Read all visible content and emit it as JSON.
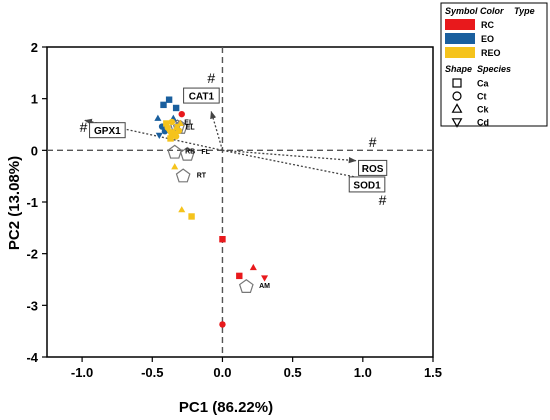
{
  "chart_data": {
    "type": "scatter",
    "xlabel": "PC1 (86.22%)",
    "ylabel": "PC2 (13.08%)",
    "xlim": [
      -1.25,
      1.5
    ],
    "ylim": [
      -4,
      2
    ],
    "x_ticks": [
      "-1.0",
      "-0.5",
      "0.0",
      "0.5",
      "1.0",
      "1.5"
    ],
    "y_ticks": [
      "-4",
      "-3",
      "-2",
      "-1",
      "0",
      "1",
      "2"
    ],
    "x_tick_values": [
      -1.0,
      -0.5,
      0.0,
      0.5,
      1.0,
      1.5
    ],
    "y_tick_values": [
      -4,
      -3,
      -2,
      -1,
      0,
      1,
      2
    ],
    "reference_lines": {
      "x": 0,
      "y": 0
    },
    "colors": {
      "RC": "#e8191c",
      "EO": "#1a5f9e",
      "REO": "#f5c31c"
    },
    "points": [
      {
        "group": "EO",
        "shape": "square",
        "x": -0.42,
        "y": 0.88
      },
      {
        "group": "EO",
        "shape": "square",
        "x": -0.38,
        "y": 0.98
      },
      {
        "group": "EO",
        "shape": "triangle-up",
        "x": -0.46,
        "y": 0.62
      },
      {
        "group": "EO",
        "shape": "triangle-down",
        "x": -0.45,
        "y": 0.29
      },
      {
        "group": "EO",
        "shape": "circle",
        "x": -0.41,
        "y": 0.37
      },
      {
        "group": "EO",
        "shape": "square",
        "x": -0.33,
        "y": 0.82
      },
      {
        "group": "EO",
        "shape": "triangle-up",
        "x": -0.35,
        "y": 0.62
      },
      {
        "group": "EO",
        "shape": "circle",
        "x": -0.43,
        "y": 0.46
      },
      {
        "group": "REO",
        "shape": "square",
        "x": -0.4,
        "y": 0.52
      },
      {
        "group": "REO",
        "shape": "circle",
        "x": -0.36,
        "y": 0.55
      },
      {
        "group": "REO",
        "shape": "triangle-up",
        "x": -0.33,
        "y": 0.44
      },
      {
        "group": "REO",
        "shape": "triangle-down",
        "x": -0.38,
        "y": 0.36
      },
      {
        "group": "REO",
        "shape": "circle",
        "x": -0.31,
        "y": 0.38
      },
      {
        "group": "REO",
        "shape": "square",
        "x": -0.36,
        "y": 0.34
      },
      {
        "group": "REO",
        "shape": "triangle-up",
        "x": -0.3,
        "y": 0.52
      },
      {
        "group": "REO",
        "shape": "circle",
        "x": -0.39,
        "y": 0.44
      },
      {
        "group": "REO",
        "shape": "circle",
        "x": -0.34,
        "y": 0.32
      },
      {
        "group": "REO",
        "shape": "triangle-down",
        "x": -0.32,
        "y": 0.46
      },
      {
        "group": "REO",
        "shape": "square",
        "x": -0.37,
        "y": 0.23
      },
      {
        "group": "REO",
        "shape": "circle",
        "x": -0.33,
        "y": 0.27
      },
      {
        "group": "RC",
        "shape": "circle",
        "x": -0.29,
        "y": 0.7
      },
      {
        "group": "REO",
        "shape": "triangle-up",
        "x": -0.34,
        "y": -0.32
      },
      {
        "group": "REO",
        "shape": "triangle-up",
        "x": -0.29,
        "y": -1.15
      },
      {
        "group": "REO",
        "shape": "square",
        "x": -0.22,
        "y": -1.28
      },
      {
        "group": "RC",
        "shape": "square",
        "x": 0.0,
        "y": -1.72
      },
      {
        "group": "RC",
        "shape": "square",
        "x": 0.12,
        "y": -2.43
      },
      {
        "group": "RC",
        "shape": "triangle-up",
        "x": 0.22,
        "y": -2.27
      },
      {
        "group": "RC",
        "shape": "triangle-down",
        "x": 0.3,
        "y": -2.47
      },
      {
        "group": "RC",
        "shape": "circle",
        "x": 0.0,
        "y": -3.37
      }
    ],
    "centroids": [
      {
        "label": "",
        "x": -0.35,
        "y": 0.45
      },
      {
        "label": "",
        "x": -0.32,
        "y": 0.45
      },
      {
        "label": "",
        "x": -0.3,
        "y": 0.44
      },
      {
        "label": "RB",
        "x": -0.34,
        "y": -0.04
      },
      {
        "label": "FL",
        "x": -0.25,
        "y": -0.08
      },
      {
        "label": "RT",
        "x": -0.28,
        "y": -0.5
      },
      {
        "label": "AM",
        "x": 0.17,
        "y": -2.64
      }
    ],
    "centroid_labels": [
      {
        "text": "RB",
        "x": -0.23,
        "y": -0.06
      },
      {
        "text": "FL",
        "x": -0.12,
        "y": -0.07
      },
      {
        "text": "RT",
        "x": -0.15,
        "y": -0.53
      },
      {
        "text": "AM",
        "x": 0.3,
        "y": -2.66
      },
      {
        "text": "EL",
        "x": -0.24,
        "y": 0.5
      },
      {
        "text": "EL",
        "x": -0.23,
        "y": 0.4
      }
    ],
    "loadings": [
      {
        "label": "CAT1",
        "x": -0.08,
        "y": 0.75,
        "label_x": -0.15,
        "label_y": 1.06,
        "hash_x": -0.08,
        "hash_y": 1.4
      },
      {
        "label": "GPX1",
        "x": -0.98,
        "y": 0.58,
        "label_x": -0.82,
        "label_y": 0.39,
        "hash_x": -0.99,
        "hash_y": 0.45
      },
      {
        "label": "ROS",
        "x": 0.95,
        "y": -0.2,
        "label_x": 1.07,
        "label_y": -0.34,
        "hash_x": 1.07,
        "hash_y": 0.16
      },
      {
        "label": "SOD1",
        "x": 1.1,
        "y": -0.6,
        "label_x": 1.03,
        "label_y": -0.66,
        "hash_x": 1.14,
        "hash_y": -0.96
      }
    ],
    "legend": {
      "placement": "top-right",
      "heading_color": "Symbol Color",
      "heading_type": "Type",
      "heading_shape": "Shape",
      "heading_species": "Species",
      "colors": [
        {
          "label": "RC",
          "color": "#e8191c"
        },
        {
          "label": "EO",
          "color": "#1a5f9e"
        },
        {
          "label": "REO",
          "color": "#f5c31c"
        }
      ],
      "shapes": [
        {
          "label": "Ca",
          "shape": "square"
        },
        {
          "label": "Ct",
          "shape": "circle"
        },
        {
          "label": "Ck",
          "shape": "triangle-up"
        },
        {
          "label": "Cd",
          "shape": "triangle-down"
        }
      ]
    }
  },
  "hash_symbol": "#"
}
